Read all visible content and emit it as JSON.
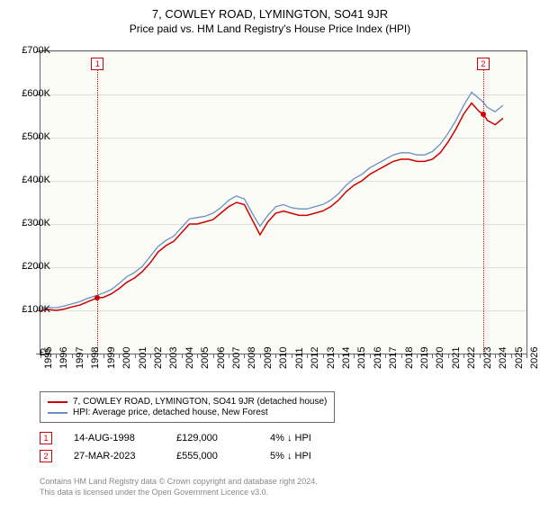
{
  "title": "7, COWLEY ROAD, LYMINGTON, SO41 9JR",
  "subtitle": "Price paid vs. HM Land Registry's House Price Index (HPI)",
  "chart": {
    "type": "line",
    "background_color": "#fcfcf7",
    "grid_color": "#dddddd",
    "axis_color": "#666666",
    "ylim": [
      0,
      700000
    ],
    "ytick_step": 100000,
    "yticks": [
      "£0",
      "£100K",
      "£200K",
      "£300K",
      "£400K",
      "£500K",
      "£600K",
      "£700K"
    ],
    "xmin": 1995,
    "xmax": 2026,
    "xticks": [
      1995,
      1996,
      1997,
      1998,
      1999,
      2000,
      2001,
      2002,
      2003,
      2004,
      2005,
      2006,
      2007,
      2008,
      2009,
      2010,
      2011,
      2012,
      2013,
      2014,
      2015,
      2016,
      2017,
      2018,
      2019,
      2020,
      2021,
      2022,
      2023,
      2024,
      2025,
      2026
    ],
    "series": [
      {
        "name": "price_paid",
        "label": "7, COWLEY ROAD, LYMINGTON, SO41 9JR (detached house)",
        "color": "#cc0000",
        "line_width": 1.5,
        "data": [
          [
            1995.0,
            100000
          ],
          [
            1995.5,
            102000
          ],
          [
            1996.0,
            100000
          ],
          [
            1996.5,
            103000
          ],
          [
            1997.0,
            108000
          ],
          [
            1997.5,
            112000
          ],
          [
            1998.0,
            120000
          ],
          [
            1998.63,
            129000
          ],
          [
            1999.0,
            130000
          ],
          [
            1999.5,
            138000
          ],
          [
            2000.0,
            150000
          ],
          [
            2000.5,
            165000
          ],
          [
            2001.0,
            175000
          ],
          [
            2001.5,
            190000
          ],
          [
            2002.0,
            210000
          ],
          [
            2002.5,
            235000
          ],
          [
            2003.0,
            250000
          ],
          [
            2003.5,
            260000
          ],
          [
            2004.0,
            280000
          ],
          [
            2004.5,
            300000
          ],
          [
            2005.0,
            300000
          ],
          [
            2005.5,
            305000
          ],
          [
            2006.0,
            310000
          ],
          [
            2006.5,
            325000
          ],
          [
            2007.0,
            340000
          ],
          [
            2007.5,
            350000
          ],
          [
            2008.0,
            345000
          ],
          [
            2008.5,
            310000
          ],
          [
            2009.0,
            275000
          ],
          [
            2009.5,
            305000
          ],
          [
            2010.0,
            325000
          ],
          [
            2010.5,
            330000
          ],
          [
            2011.0,
            325000
          ],
          [
            2011.5,
            320000
          ],
          [
            2012.0,
            320000
          ],
          [
            2012.5,
            325000
          ],
          [
            2013.0,
            330000
          ],
          [
            2013.5,
            340000
          ],
          [
            2014.0,
            355000
          ],
          [
            2014.5,
            375000
          ],
          [
            2015.0,
            390000
          ],
          [
            2015.5,
            400000
          ],
          [
            2016.0,
            415000
          ],
          [
            2016.5,
            425000
          ],
          [
            2017.0,
            435000
          ],
          [
            2017.5,
            445000
          ],
          [
            2018.0,
            450000
          ],
          [
            2018.5,
            450000
          ],
          [
            2019.0,
            445000
          ],
          [
            2019.5,
            445000
          ],
          [
            2020.0,
            450000
          ],
          [
            2020.5,
            465000
          ],
          [
            2021.0,
            490000
          ],
          [
            2021.5,
            520000
          ],
          [
            2022.0,
            555000
          ],
          [
            2022.5,
            580000
          ],
          [
            2023.0,
            560000
          ],
          [
            2023.24,
            555000
          ],
          [
            2023.5,
            540000
          ],
          [
            2024.0,
            530000
          ],
          [
            2024.5,
            545000
          ]
        ]
      },
      {
        "name": "hpi",
        "label": "HPI: Average price, detached house, New Forest",
        "color": "#6a8fc7",
        "line_width": 1.3,
        "data": [
          [
            1995.0,
            105000
          ],
          [
            1995.5,
            107000
          ],
          [
            1996.0,
            106000
          ],
          [
            1996.5,
            110000
          ],
          [
            1997.0,
            115000
          ],
          [
            1997.5,
            120000
          ],
          [
            1998.0,
            128000
          ],
          [
            1998.63,
            135000
          ],
          [
            1999.0,
            140000
          ],
          [
            1999.5,
            148000
          ],
          [
            2000.0,
            162000
          ],
          [
            2000.5,
            178000
          ],
          [
            2001.0,
            188000
          ],
          [
            2001.5,
            202000
          ],
          [
            2002.0,
            225000
          ],
          [
            2002.5,
            248000
          ],
          [
            2003.0,
            262000
          ],
          [
            2003.5,
            272000
          ],
          [
            2004.0,
            292000
          ],
          [
            2004.5,
            312000
          ],
          [
            2005.0,
            315000
          ],
          [
            2005.5,
            318000
          ],
          [
            2006.0,
            325000
          ],
          [
            2006.5,
            338000
          ],
          [
            2007.0,
            355000
          ],
          [
            2007.5,
            365000
          ],
          [
            2008.0,
            358000
          ],
          [
            2008.5,
            325000
          ],
          [
            2009.0,
            295000
          ],
          [
            2009.5,
            320000
          ],
          [
            2010.0,
            340000
          ],
          [
            2010.5,
            345000
          ],
          [
            2011.0,
            338000
          ],
          [
            2011.5,
            335000
          ],
          [
            2012.0,
            335000
          ],
          [
            2012.5,
            340000
          ],
          [
            2013.0,
            345000
          ],
          [
            2013.5,
            355000
          ],
          [
            2014.0,
            370000
          ],
          [
            2014.5,
            390000
          ],
          [
            2015.0,
            405000
          ],
          [
            2015.5,
            415000
          ],
          [
            2016.0,
            430000
          ],
          [
            2016.5,
            440000
          ],
          [
            2017.0,
            450000
          ],
          [
            2017.5,
            460000
          ],
          [
            2018.0,
            465000
          ],
          [
            2018.5,
            465000
          ],
          [
            2019.0,
            460000
          ],
          [
            2019.5,
            460000
          ],
          [
            2020.0,
            468000
          ],
          [
            2020.5,
            485000
          ],
          [
            2021.0,
            510000
          ],
          [
            2021.5,
            540000
          ],
          [
            2022.0,
            575000
          ],
          [
            2022.5,
            605000
          ],
          [
            2023.0,
            590000
          ],
          [
            2023.24,
            582000
          ],
          [
            2023.5,
            570000
          ],
          [
            2024.0,
            560000
          ],
          [
            2024.5,
            575000
          ]
        ]
      }
    ],
    "markers": [
      {
        "n": "1",
        "year": 1998.63,
        "top_y": 14
      },
      {
        "n": "2",
        "year": 2023.24,
        "top_y": 14
      }
    ],
    "sale_points": [
      {
        "year": 1998.63,
        "price": 129000
      },
      {
        "year": 2023.24,
        "price": 555000
      }
    ]
  },
  "legend": {
    "items": [
      {
        "color": "#cc0000",
        "label": "7, COWLEY ROAD, LYMINGTON, SO41 9JR (detached house)"
      },
      {
        "color": "#6a8fc7",
        "label": "HPI: Average price, detached house, New Forest"
      }
    ]
  },
  "sales": [
    {
      "n": "1",
      "date": "14-AUG-1998",
      "price": "£129,000",
      "hpi": "4% ↓ HPI"
    },
    {
      "n": "2",
      "date": "27-MAR-2023",
      "price": "£555,000",
      "hpi": "5% ↓ HPI"
    }
  ],
  "attribution": {
    "line1": "Contains HM Land Registry data © Crown copyright and database right 2024.",
    "line2": "This data is licensed under the Open Government Licence v3.0."
  }
}
